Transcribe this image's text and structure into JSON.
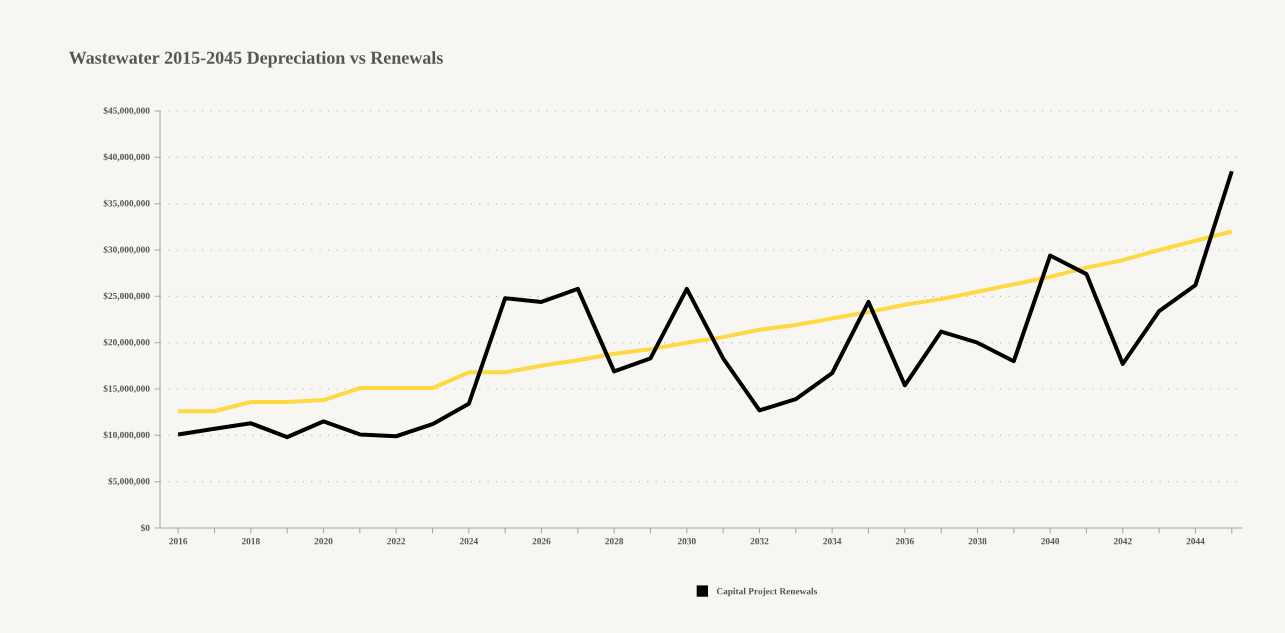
{
  "chart_data": {
    "type": "line",
    "title": "Wastewater 2015-2045 Depreciation vs Renewals",
    "x": [
      2016,
      2017,
      2018,
      2019,
      2020,
      2021,
      2022,
      2023,
      2024,
      2025,
      2026,
      2027,
      2028,
      2029,
      2030,
      2031,
      2032,
      2033,
      2034,
      2035,
      2036,
      2037,
      2038,
      2039,
      2040,
      2041,
      2042,
      2043,
      2044,
      2045
    ],
    "series": [
      {
        "color": "#fdd944",
        "values": [
          12600000,
          12600000,
          13600000,
          13600000,
          13800000,
          15100000,
          15100000,
          15100000,
          16800000,
          16800000,
          17500000,
          18100000,
          18800000,
          19300000,
          20000000,
          20600000,
          21400000,
          21900000,
          22600000,
          23300000,
          24100000,
          24700000,
          25500000,
          26300000,
          27100000,
          28100000,
          28900000,
          30000000,
          31000000,
          32000000
        ]
      },
      {
        "name": "Capital Project Renewals",
        "color": "#000000",
        "values": [
          10100000,
          10700000,
          11300000,
          9800000,
          11500000,
          10100000,
          9900000,
          11200000,
          13400000,
          24800000,
          24400000,
          25800000,
          16900000,
          18300000,
          25800000,
          18300000,
          12700000,
          13900000,
          16700000,
          24400000,
          15400000,
          21200000,
          20000000,
          18000000,
          29400000,
          27400000,
          17700000,
          23400000,
          26200000,
          38500000
        ]
      }
    ],
    "xlim": [
      2015.5,
      2045.3
    ],
    "xticks": [
      2016,
      {
        "value": 2017,
        "label": null
      },
      2018,
      {
        "value": 2019,
        "label": null
      },
      2020,
      {
        "value": 2021,
        "label": null
      },
      2022,
      {
        "value": 2023,
        "label": null
      },
      2024,
      {
        "value": 2025,
        "label": null
      },
      2026,
      {
        "value": 2027,
        "label": null
      },
      2028,
      {
        "value": 2029,
        "label": null
      },
      2030,
      {
        "value": 2031,
        "label": null
      },
      2032,
      {
        "value": 2033,
        "label": null
      },
      2034,
      {
        "value": 2035,
        "label": null
      },
      2036,
      {
        "value": 2037,
        "label": null
      },
      2038,
      {
        "value": 2039,
        "label": null
      },
      2040,
      {
        "value": 2041,
        "label": null
      },
      2042,
      {
        "value": 2043,
        "label": null
      },
      2044,
      {
        "value": 2045,
        "label": null
      }
    ],
    "ylim": [
      0,
      45000000
    ],
    "yticks": [
      {
        "value": 0,
        "label": "$0"
      },
      {
        "value": 5000000,
        "label": "$5,000,000"
      },
      {
        "value": 10000000,
        "label": "$10,000,000"
      },
      {
        "value": 15000000,
        "label": "$15,000,000"
      },
      {
        "value": 20000000,
        "label": "$20,000,000"
      },
      {
        "value": 25000000,
        "label": "$25,000,000"
      },
      {
        "value": 30000000,
        "label": "$30,000,000"
      },
      {
        "value": 35000000,
        "label": "$35,000,000"
      },
      {
        "value": 40000000,
        "label": "$40,000,000"
      },
      {
        "value": 45000000,
        "label": "$45,000,000"
      }
    ],
    "grid": "y",
    "legend": "bottom"
  }
}
